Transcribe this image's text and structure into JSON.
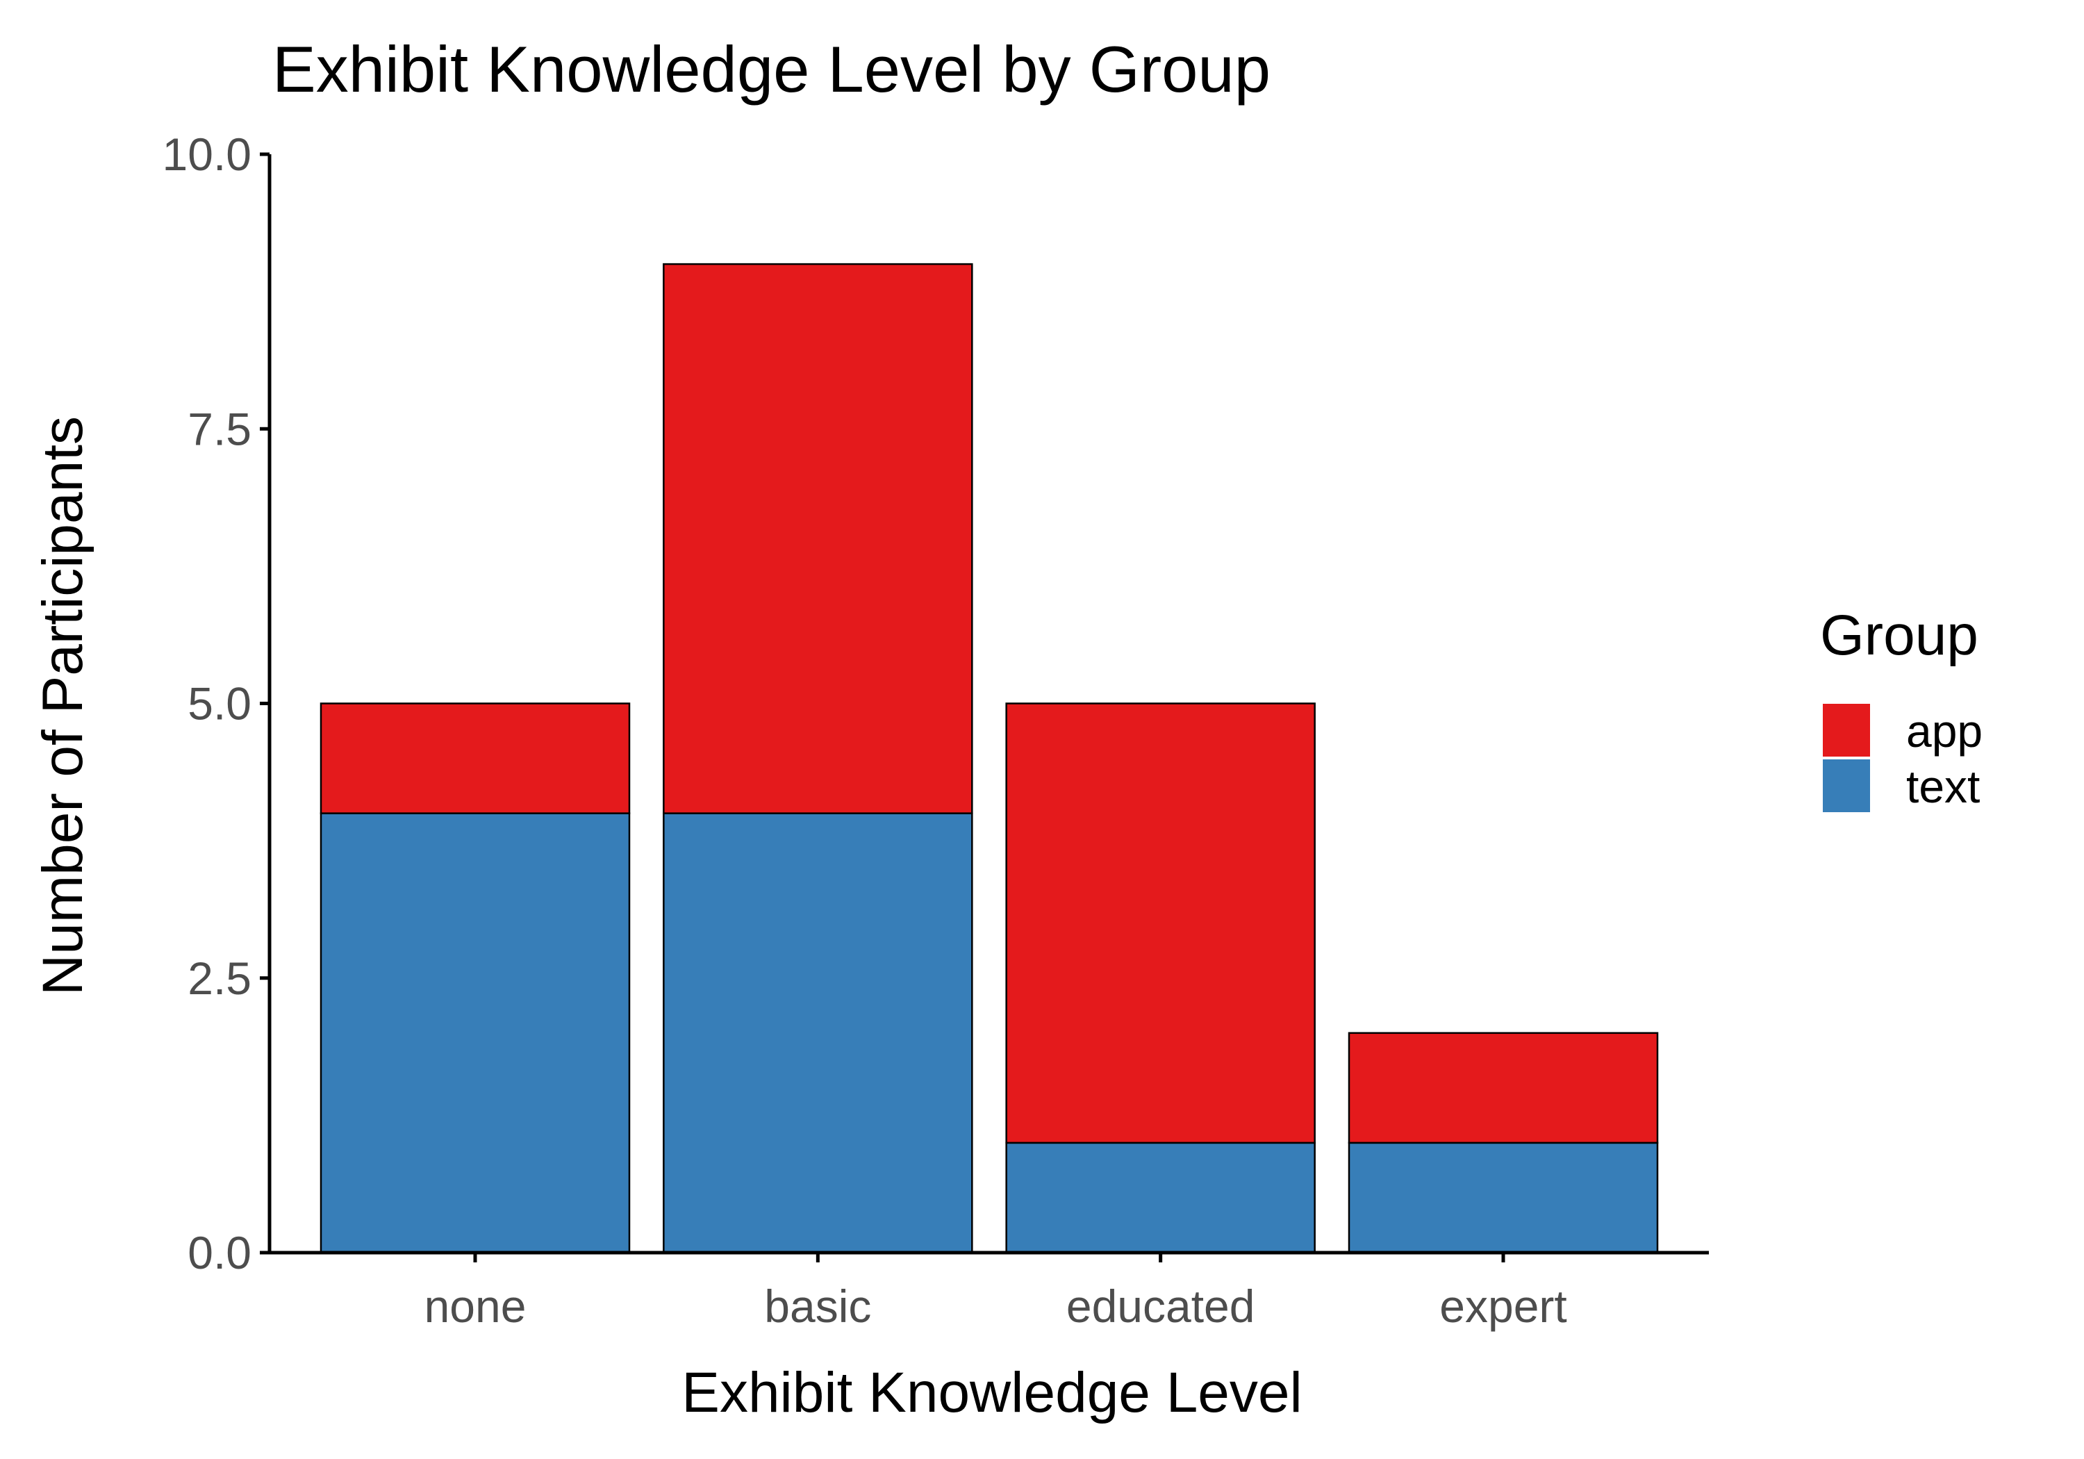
{
  "chart_data": {
    "type": "bar",
    "stacked": true,
    "title": "Exhibit Knowledge Level by Group",
    "xlabel": "Exhibit Knowledge Level",
    "ylabel": "Number of Participants",
    "categories": [
      "none",
      "basic",
      "educated",
      "expert"
    ],
    "ylim": [
      0,
      10
    ],
    "yticks": [
      "0.0",
      "2.5",
      "5.0",
      "7.5",
      "10.0"
    ],
    "ytick_values": [
      0,
      2.5,
      5,
      7.5,
      10
    ],
    "grid": false,
    "legend": {
      "title": "Group",
      "position": "right"
    },
    "series": [
      {
        "name": "text",
        "color": "#377eb8",
        "values": [
          4,
          4,
          1,
          1
        ]
      },
      {
        "name": "app",
        "color": "#e41a1c",
        "values": [
          1,
          5,
          4,
          1
        ]
      }
    ],
    "legend_order": [
      "app",
      "text"
    ]
  }
}
